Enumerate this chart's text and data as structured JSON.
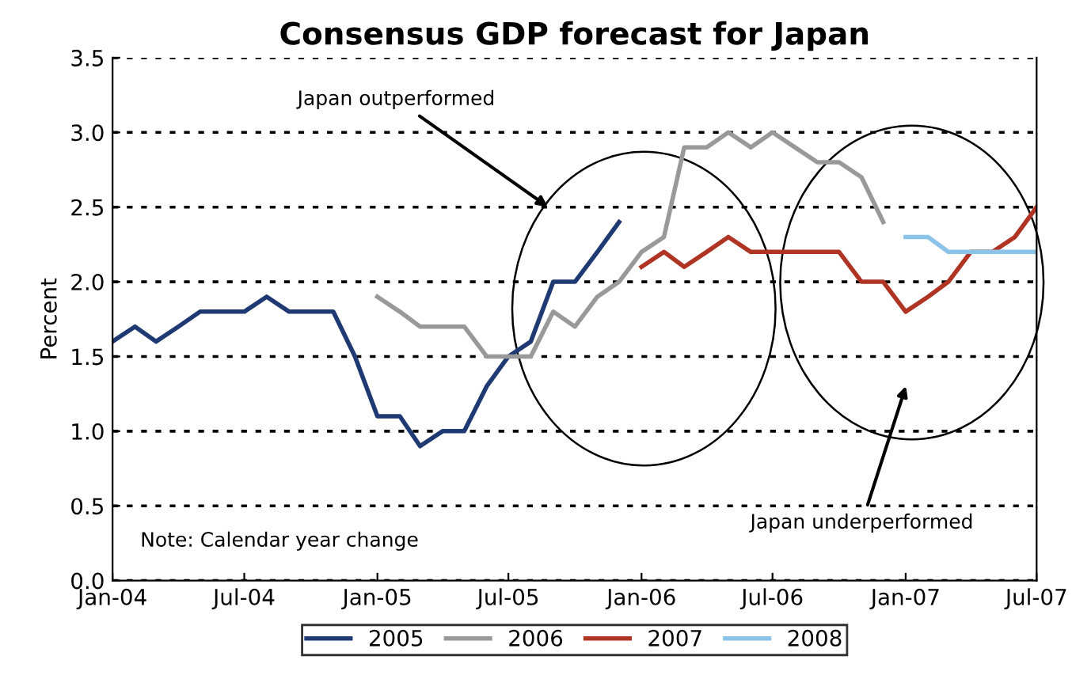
{
  "chart_data": {
    "type": "line",
    "title": "Consensus GDP forecast for Japan",
    "ylabel": "Percent",
    "x": [
      "2004-01",
      "2004-02",
      "2004-03",
      "2004-04",
      "2004-05",
      "2004-06",
      "2004-07",
      "2004-08",
      "2004-09",
      "2004-10",
      "2004-11",
      "2004-12",
      "2005-01",
      "2005-02",
      "2005-03",
      "2005-04",
      "2005-05",
      "2005-06",
      "2005-07",
      "2005-08",
      "2005-09",
      "2005-10",
      "2005-11",
      "2005-12",
      "2006-01",
      "2006-02",
      "2006-03",
      "2006-04",
      "2006-05",
      "2006-06",
      "2006-07",
      "2006-08",
      "2006-09",
      "2006-10",
      "2006-11",
      "2006-12",
      "2007-01",
      "2007-02",
      "2007-03",
      "2007-04",
      "2007-05",
      "2007-06",
      "2007-07"
    ],
    "series": [
      {
        "name": "2005",
        "color": "#1f3a73",
        "values": [
          1.6,
          1.7,
          1.6,
          1.7,
          1.8,
          1.8,
          1.8,
          1.9,
          1.8,
          1.8,
          1.8,
          1.5,
          1.1,
          1.1,
          0.9,
          1.0,
          1.0,
          1.3,
          1.5,
          1.6,
          2.0,
          2.0,
          2.2,
          2.4,
          null,
          null,
          null,
          null,
          null,
          null,
          null,
          null,
          null,
          null,
          null,
          null,
          null,
          null,
          null,
          null,
          null,
          null,
          null
        ]
      },
      {
        "name": "2006",
        "color": "#999999",
        "values": [
          null,
          null,
          null,
          null,
          null,
          null,
          null,
          null,
          null,
          null,
          null,
          null,
          1.9,
          1.8,
          1.7,
          1.7,
          1.7,
          1.5,
          1.5,
          1.5,
          1.8,
          1.7,
          1.9,
          2.0,
          2.2,
          2.3,
          2.9,
          2.9,
          3.0,
          2.9,
          3.0,
          2.9,
          2.8,
          2.8,
          2.7,
          2.4,
          null,
          null,
          null,
          null,
          null,
          null,
          null
        ]
      },
      {
        "name": "2007",
        "color": "#b03423",
        "values": [
          null,
          null,
          null,
          null,
          null,
          null,
          null,
          null,
          null,
          null,
          null,
          null,
          null,
          null,
          null,
          null,
          null,
          null,
          null,
          null,
          null,
          null,
          null,
          null,
          2.1,
          2.2,
          2.1,
          2.2,
          2.3,
          2.2,
          2.2,
          2.2,
          2.2,
          2.2,
          2.0,
          2.0,
          1.8,
          1.9,
          2.0,
          2.2,
          2.2,
          2.3,
          2.5
        ]
      },
      {
        "name": "2008",
        "color": "#8cc3e8",
        "values": [
          null,
          null,
          null,
          null,
          null,
          null,
          null,
          null,
          null,
          null,
          null,
          null,
          null,
          null,
          null,
          null,
          null,
          null,
          null,
          null,
          null,
          null,
          null,
          null,
          null,
          null,
          null,
          null,
          null,
          null,
          null,
          null,
          null,
          null,
          null,
          null,
          2.3,
          2.3,
          2.2,
          2.2,
          2.2,
          2.2,
          2.2
        ]
      }
    ],
    "xlim": [
      "2004-01",
      "2007-07"
    ],
    "xticks": [
      {
        "value": "2004-01",
        "label": "Jan-04"
      },
      {
        "value": "2004-07",
        "label": "Jul-04"
      },
      {
        "value": "2005-01",
        "label": "Jan-05"
      },
      {
        "value": "2005-07",
        "label": "Jul-05"
      },
      {
        "value": "2006-01",
        "label": "Jan-06"
      },
      {
        "value": "2006-07",
        "label": "Jul-06"
      },
      {
        "value": "2007-01",
        "label": "Jan-07"
      },
      {
        "value": "2007-07",
        "label": "Jul-07"
      }
    ],
    "ylim": [
      0,
      3.5
    ],
    "yticks": [
      {
        "value": 0,
        "label": "0.0"
      },
      {
        "value": 0.5,
        "label": "0.5"
      },
      {
        "value": 1,
        "label": "1.0"
      },
      {
        "value": 1.5,
        "label": "1.5"
      },
      {
        "value": 2,
        "label": "2.0"
      },
      {
        "value": 2.5,
        "label": "2.5"
      },
      {
        "value": 3,
        "label": "3.0"
      },
      {
        "value": 3.5,
        "label": "3.5"
      }
    ],
    "grid": "y",
    "legend": "bottom",
    "marker": "none",
    "line_style": "solid",
    "annotations": [
      "Japan outperformed",
      "Japan underperformed",
      "Note: Calendar year change"
    ]
  }
}
